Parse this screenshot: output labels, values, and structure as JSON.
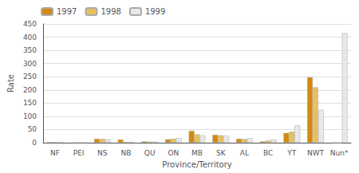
{
  "chart_data": {
    "type": "bar",
    "xlabel": "Province/Territory",
    "ylabel": "Rate",
    "categories": [
      "NF",
      "PEI",
      "NS",
      "NB",
      "QU",
      "ON",
      "MB",
      "SK",
      "AL",
      "BC",
      "YT",
      "NWT",
      "Nun*"
    ],
    "series": [
      {
        "name": "1997",
        "color": "#D4890A",
        "values": [
          2,
          1,
          15,
          12,
          5,
          13,
          45,
          30,
          15,
          5,
          37,
          248,
          0
        ]
      },
      {
        "name": "1998",
        "color": "#E8C060",
        "values": [
          2,
          1,
          14,
          3,
          4,
          15,
          32,
          28,
          14,
          8,
          42,
          210,
          0
        ]
      },
      {
        "name": "1999",
        "color": "#E8E8E8",
        "values": [
          2,
          1,
          13,
          3,
          4,
          18,
          28,
          27,
          17,
          12,
          65,
          125,
          415
        ]
      }
    ],
    "ylim": [
      0,
      450
    ],
    "yticks": [
      0,
      50,
      100,
      150,
      200,
      250,
      300,
      350,
      400,
      450
    ],
    "grid": true,
    "legend": "upper left"
  }
}
